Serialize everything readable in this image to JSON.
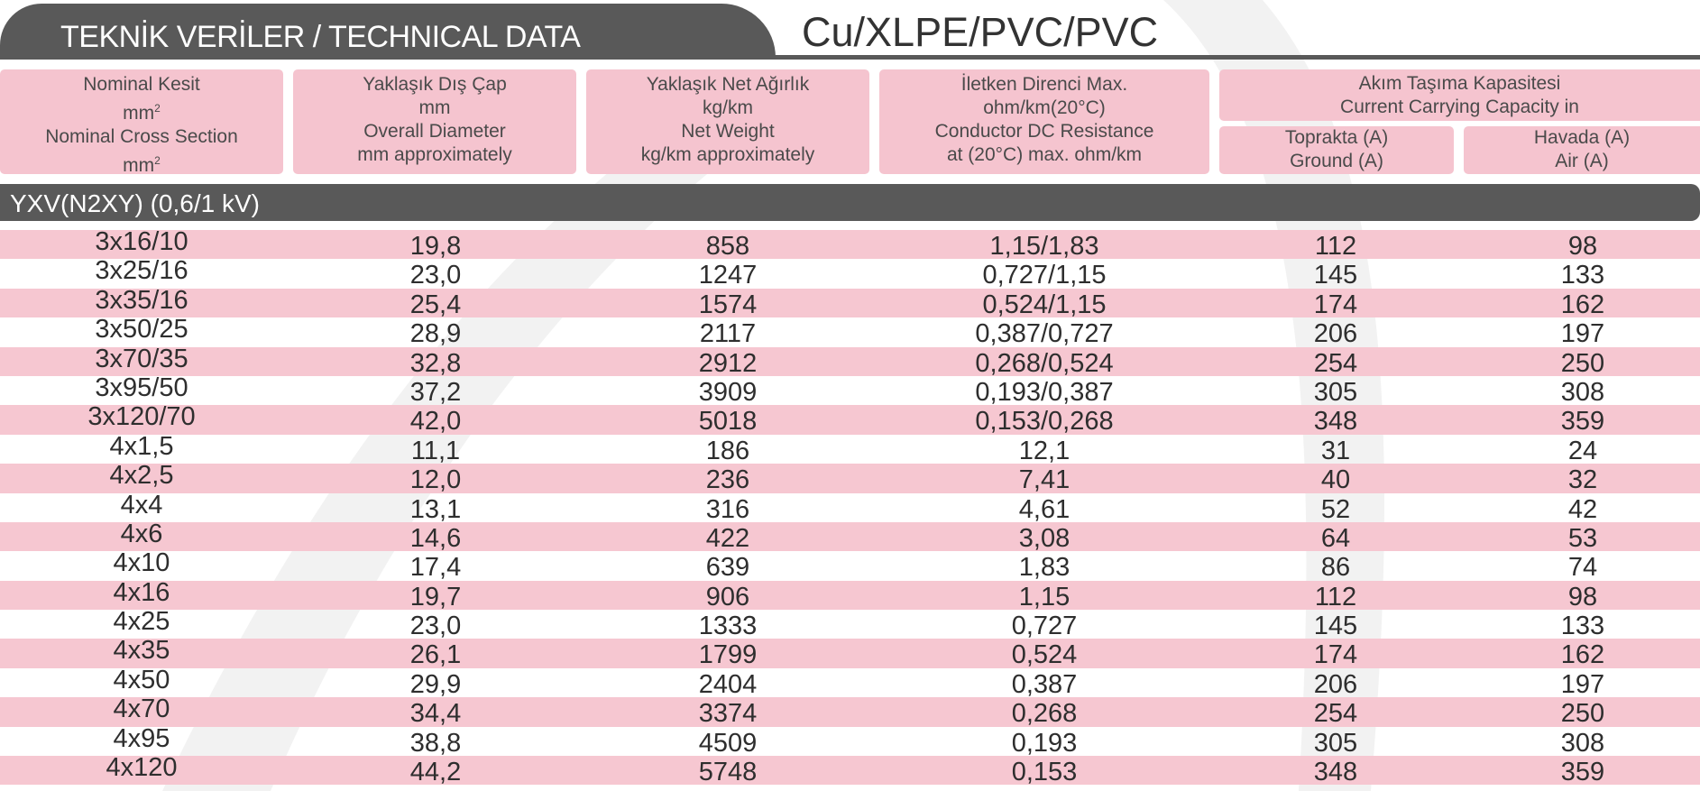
{
  "title": "TEKNİK  VERİLER /  TECHNICAL DATA",
  "subtitle": "Cu/XLPE/PVC/PVC",
  "headers": {
    "nominal": {
      "tr": "Nominal Kesit",
      "tr_unit": "mm",
      "en": "Nominal Cross Section",
      "en_unit": "mm",
      "sup": "2"
    },
    "diameter": {
      "tr": "Yaklaşık Dış Çap",
      "tr_unit": "mm",
      "en": "Overall Diameter",
      "en_unit": "mm approximately"
    },
    "weight": {
      "tr": "Yaklaşık Net Ağırlık",
      "tr_unit": "kg/km",
      "en": "Net Weight",
      "en_unit": "kg/km approximately"
    },
    "resistance": {
      "tr": "İletken Direnci Max.",
      "tr_unit": "ohm/km(20°C)",
      "en": "Conductor DC Resistance",
      "en_unit": "at (20°C) max. ohm/km"
    },
    "capacity": {
      "tr": "Akım Taşıma Kapasitesi",
      "en": "Current Carrying Capacity in"
    },
    "ground": {
      "tr": "Toprakta (A)",
      "en": "Ground (A)"
    },
    "air": {
      "tr": "Havada (A)",
      "en": "Air (A)"
    }
  },
  "section": "YXV(N2XY) (0,6/1 kV)",
  "rows": [
    [
      "3x16/10",
      "19,8",
      "858",
      "1,15/1,83",
      "112",
      "98"
    ],
    [
      "3x25/16",
      "23,0",
      "1247",
      "0,727/1,15",
      "145",
      "133"
    ],
    [
      "3x35/16",
      "25,4",
      "1574",
      "0,524/1,15",
      "174",
      "162"
    ],
    [
      "3x50/25",
      "28,9",
      "2117",
      "0,387/0,727",
      "206",
      "197"
    ],
    [
      "3x70/35",
      "32,8",
      "2912",
      "0,268/0,524",
      "254",
      "250"
    ],
    [
      "3x95/50",
      "37,2",
      "3909",
      "0,193/0,387",
      "305",
      "308"
    ],
    [
      "3x120/70",
      "42,0",
      "5018",
      "0,153/0,268",
      "348",
      "359"
    ],
    [
      "4x1,5",
      "11,1",
      "186",
      "12,1",
      "31",
      "24"
    ],
    [
      "4x2,5",
      "12,0",
      "236",
      "7,41",
      "40",
      "32"
    ],
    [
      "4x4",
      "13,1",
      "316",
      "4,61",
      "52",
      "42"
    ],
    [
      "4x6",
      "14,6",
      "422",
      "3,08",
      "64",
      "53"
    ],
    [
      "4x10",
      "17,4",
      "639",
      "1,83",
      "86",
      "74"
    ],
    [
      "4x16",
      "19,7",
      "906",
      "1,15",
      "112",
      "98"
    ],
    [
      "4x25",
      "23,0",
      "1333",
      "0,727",
      "145",
      "133"
    ],
    [
      "4x35",
      "26,1",
      "1799",
      "0,524",
      "174",
      "162"
    ],
    [
      "4x50",
      "29,9",
      "2404",
      "0,387",
      "206",
      "197"
    ],
    [
      "4x70",
      "34,4",
      "3374",
      "0,268",
      "254",
      "250"
    ],
    [
      "4x95",
      "38,8",
      "4509",
      "0,193",
      "305",
      "308"
    ],
    [
      "4x120",
      "44,2",
      "5748",
      "0,153",
      "348",
      "359"
    ]
  ],
  "colors": {
    "bar": "#595959",
    "pink": "#f5c4cf",
    "text": "#2e2e2e"
  }
}
